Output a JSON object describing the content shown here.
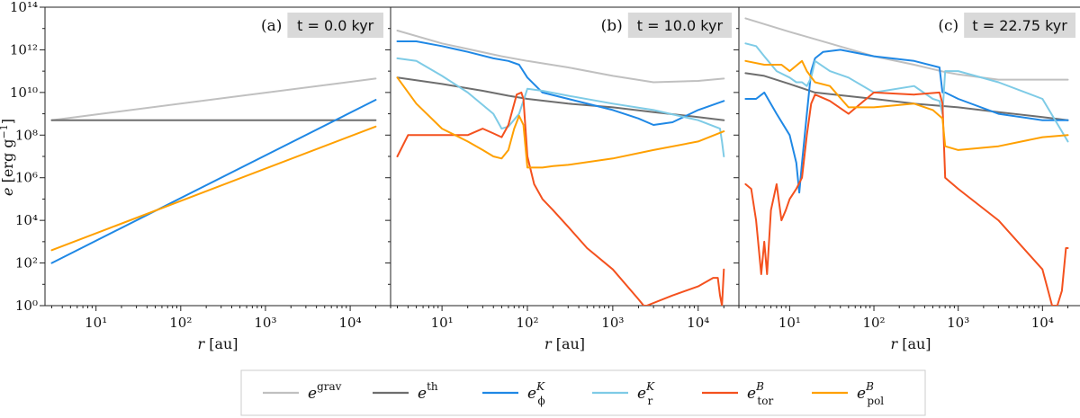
{
  "chart_data": [
    {
      "type": "line",
      "panel_label": "(a)",
      "time_label": "t = 0.0 kyr",
      "xlabel": "r [au]",
      "ylabel": "e [erg g⁻¹]",
      "xscale": "log",
      "yscale": "log",
      "xlim": [
        2.5,
        30000
      ],
      "ylim": [
        1,
        100000000000000.0
      ],
      "x_ticks": [
        "10¹",
        "10²",
        "10³",
        "10⁴"
      ],
      "y_ticks": [
        "10⁰",
        "10²",
        "10⁴",
        "10⁶",
        "10⁸",
        "10¹⁰",
        "10¹²",
        "10¹⁴"
      ],
      "series": [
        {
          "key": "grav",
          "x": [
            3,
            20000
          ],
          "y": [
            500000000.0,
            45000000000.0
          ]
        },
        {
          "key": "th",
          "x": [
            3,
            20000
          ],
          "y": [
            500000000.0,
            500000000.0
          ]
        },
        {
          "key": "ephi",
          "x": [
            3,
            20000
          ],
          "y": [
            100,
            4500000000.0
          ]
        },
        {
          "key": "epol",
          "x": [
            3,
            20000
          ],
          "y": [
            400,
            250000000.0
          ]
        }
      ]
    },
    {
      "type": "line",
      "panel_label": "(b)",
      "time_label": "t = 10.0 kyr",
      "xlabel": "r [au]",
      "xscale": "log",
      "yscale": "log",
      "xlim": [
        2.5,
        30000
      ],
      "ylim": [
        1,
        100000000000000.0
      ],
      "x_ticks": [
        "10¹",
        "10²",
        "10³",
        "10⁴"
      ],
      "series": [
        {
          "key": "grav",
          "x": [
            3,
            10,
            50,
            100,
            300,
            1000,
            3000,
            10000,
            20000
          ],
          "y": [
            8000000000000.0,
            2000000000000.0,
            500000000000.0,
            300000000000.0,
            150000000000.0,
            60000000000.0,
            30000000000.0,
            35000000000.0,
            45000000000.0
          ]
        },
        {
          "key": "th",
          "x": [
            3,
            10,
            30,
            60,
            100,
            300,
            1000,
            3000,
            10000,
            20000
          ],
          "y": [
            50000000000.0,
            25000000000.0,
            12000000000.0,
            7000000000.0,
            5000000000.0,
            3000000000.0,
            2000000000.0,
            1200000000.0,
            700000000.0,
            500000000.0
          ]
        },
        {
          "key": "ephi",
          "x": [
            3,
            5,
            10,
            20,
            40,
            60,
            80,
            100,
            150,
            300,
            1000,
            2000,
            3000,
            5000,
            10000,
            20000
          ],
          "y": [
            2500000000000.0,
            2500000000000.0,
            1500000000000.0,
            800000000000.0,
            400000000000.0,
            300000000000.0,
            200000000000.0,
            50000000000.0,
            10000000000.0,
            5000000000.0,
            1500000000.0,
            600000000.0,
            300000000.0,
            400000000.0,
            1500000000.0,
            4000000000.0
          ]
        },
        {
          "key": "er",
          "x": [
            3,
            5,
            10,
            20,
            40,
            50,
            60,
            80,
            100,
            150,
            300,
            1000,
            3000,
            10000,
            18000,
            19000,
            20000
          ],
          "y": [
            400000000000.0,
            300000000000.0,
            60000000000.0,
            10000000000.0,
            1000000000.0,
            200000000.0,
            250000000.0,
            1000000000.0,
            15000000000.0,
            12000000000.0,
            7000000000.0,
            3000000000.0,
            1500000000.0,
            500000000.0,
            200000000.0,
            50000000.0,
            10000000.0
          ]
        },
        {
          "key": "etor",
          "x": [
            3,
            4,
            6,
            10,
            20,
            30,
            40,
            50,
            60,
            75,
            85,
            90,
            100,
            120,
            150,
            200,
            300,
            500,
            1000,
            2000,
            2300,
            2500,
            5000,
            10000,
            15000,
            17000,
            18000,
            19000,
            20000
          ],
          "y": [
            10000000.0,
            100000000.0,
            100000000.0,
            100000000.0,
            100000000.0,
            200000000.0,
            120000000.0,
            80000000.0,
            300000000.0,
            8000000000.0,
            10000000000.0,
            5000000000.0,
            10000000.0,
            500000.0,
            100000.0,
            30000.0,
            5000.0,
            500,
            50,
            2,
            1,
            1,
            3,
            8,
            20,
            20,
            3,
            1,
            50
          ]
        },
        {
          "key": "epol",
          "x": [
            3,
            5,
            10,
            20,
            30,
            40,
            50,
            60,
            70,
            80,
            90,
            100,
            120,
            150,
            200,
            300,
            1000,
            3000,
            10000,
            20000
          ],
          "y": [
            50000000000.0,
            3000000000.0,
            200000000.0,
            50000000.0,
            20000000.0,
            10000000.0,
            8000000.0,
            20000000.0,
            200000000.0,
            800000000.0,
            300000000.0,
            3000000.0,
            3000000.0,
            3000000.0,
            3500000.0,
            4000000.0,
            8000000.0,
            20000000.0,
            50000000.0,
            150000000.0
          ]
        }
      ]
    },
    {
      "type": "line",
      "panel_label": "(c)",
      "time_label": "t = 22.75 kyr",
      "xlabel": "r [au]",
      "xscale": "log",
      "yscale": "log",
      "xlim": [
        2.5,
        30000
      ],
      "ylim": [
        1,
        100000000000000.0
      ],
      "x_ticks": [
        "10¹",
        "10²",
        "10³",
        "10⁴"
      ],
      "series": [
        {
          "key": "grav",
          "x": [
            3,
            10,
            30,
            100,
            300,
            700,
            1000,
            3000,
            10000,
            20000
          ],
          "y": [
            30000000000000.0,
            7000000000000.0,
            2000000000000.0,
            500000000000.0,
            200000000000.0,
            90000000000.0,
            70000000000.0,
            40000000000.0,
            40000000000.0,
            40000000000.0
          ]
        },
        {
          "key": "th",
          "x": [
            3,
            5,
            10,
            20,
            100,
            300,
            1000,
            3000,
            10000,
            20000
          ],
          "y": [
            80000000000.0,
            60000000000.0,
            25000000000.0,
            10000000000.0,
            5000000000.0,
            3000000000.0,
            2000000000.0,
            1200000000.0,
            700000000.0,
            500000000.0
          ]
        },
        {
          "key": "ephi",
          "x": [
            3,
            4,
            5,
            7,
            10,
            12,
            13,
            14,
            16,
            18,
            20,
            25,
            40,
            100,
            300,
            600,
            650,
            700,
            1000,
            3000,
            10000,
            20000
          ],
          "y": [
            5000000000.0,
            5000000000.0,
            10000000000.0,
            1000000000.0,
            100000000.0,
            5000000.0,
            200000.0,
            5000000.0,
            1000000000.0,
            100000000000.0,
            400000000000.0,
            800000000000.0,
            1000000000000.0,
            500000000000.0,
            300000000000.0,
            150000000000.0,
            10000000000.0,
            10000000000.0,
            5000000000.0,
            1000000000.0,
            500000000.0,
            500000000.0
          ]
        },
        {
          "key": "er",
          "x": [
            3,
            4,
            5,
            7,
            10,
            12,
            14,
            16,
            18,
            20,
            30,
            50,
            100,
            300,
            500,
            600,
            650,
            700,
            1000,
            3000,
            10000,
            20000
          ],
          "y": [
            2000000000000.0,
            1500000000000.0,
            500000000000.0,
            100000000000.0,
            50000000000.0,
            30000000000.0,
            30000000000.0,
            20000000000.0,
            50000000000.0,
            300000000000.0,
            100000000000.0,
            50000000000.0,
            10000000000.0,
            20000000000.0,
            5000000000.0,
            4000000000.0,
            1000000000.0,
            100000000000.0,
            100000000000.0,
            30000000000.0,
            5000000000.0,
            50000000.0
          ]
        },
        {
          "key": "etor",
          "x": [
            3,
            3.5,
            4,
            4.6,
            5,
            5.4,
            6,
            7,
            8,
            9,
            10,
            12,
            14,
            16,
            18,
            20,
            30,
            50,
            100,
            300,
            600,
            650,
            700,
            1000,
            3000,
            10000,
            13000,
            15000,
            17000,
            19000,
            20000
          ],
          "y": [
            500000.0,
            300000.0,
            10000.0,
            30,
            1000.0,
            30,
            30000.0,
            500000.0,
            10000.0,
            30000.0,
            100000.0,
            300000.0,
            1000000.0,
            100000000.0,
            3000000000.0,
            8000000000.0,
            4000000000.0,
            1000000000.0,
            10000000000.0,
            8000000000.0,
            10000000000.0,
            3000000000.0,
            1000000.0,
            300000.0,
            10000.0,
            50,
            1,
            1,
            5,
            500,
            500
          ]
        },
        {
          "key": "epol",
          "x": [
            3,
            5,
            8,
            10,
            14,
            16,
            20,
            30,
            50,
            100,
            300,
            500,
            650,
            700,
            1000,
            3000,
            10000,
            20000
          ],
          "y": [
            300000000000.0,
            200000000000.0,
            200000000000.0,
            100000000000.0,
            300000000000.0,
            100000000000.0,
            30000000000.0,
            20000000000.0,
            2000000000.0,
            2000000000.0,
            3000000000.0,
            1500000000.0,
            600000000.0,
            30000000.0,
            20000000.0,
            30000000.0,
            80000000.0,
            100000000.0
          ]
        }
      ]
    }
  ],
  "styles": {
    "grav": "#c0c0c0",
    "th": "#6e6e6e",
    "ephi": "#1f88e5",
    "er": "#7ecbe6",
    "etor": "#f4511e",
    "epol": "#ffa000"
  },
  "legend": [
    {
      "key": "grav",
      "base": "e",
      "sup": "grav",
      "sub": ""
    },
    {
      "key": "th",
      "base": "e",
      "sup": "th",
      "sub": ""
    },
    {
      "key": "ephi",
      "base": "e",
      "sup": "K",
      "sub": "ϕ"
    },
    {
      "key": "er",
      "base": "e",
      "sup": "K",
      "sub": "r"
    },
    {
      "key": "etor",
      "base": "e",
      "sup": "B",
      "sub": "tor"
    },
    {
      "key": "epol",
      "base": "e",
      "sup": "B",
      "sub": "pol"
    }
  ]
}
